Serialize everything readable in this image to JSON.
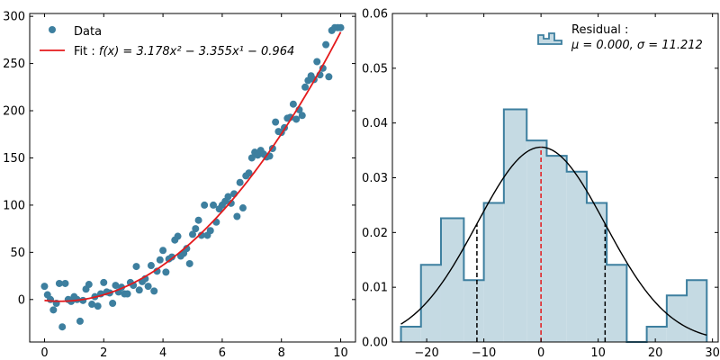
{
  "chart_data": [
    {
      "type": "scatter",
      "xlim": [
        -0.5,
        10.5
      ],
      "ylim": [
        -45,
        303
      ],
      "x_ticks": [
        0,
        2,
        4,
        6,
        8,
        10
      ],
      "y_ticks": [
        0,
        50,
        100,
        150,
        200,
        250,
        300
      ],
      "grid": false,
      "legend_position": "top-left",
      "colors": {
        "data": "#3d7f9f",
        "fit": "#e41a1c"
      },
      "series": [
        {
          "name": "Data",
          "x": [
            0.0,
            0.1,
            0.2,
            0.3,
            0.4,
            0.5,
            0.6,
            0.7,
            0.8,
            0.9,
            1.0,
            1.1,
            1.2,
            1.3,
            1.4,
            1.5,
            1.6,
            1.7,
            1.8,
            1.9,
            2.0,
            2.1,
            2.2,
            2.3,
            2.4,
            2.5,
            2.6,
            2.7,
            2.8,
            2.9,
            3.0,
            3.1,
            3.2,
            3.3,
            3.4,
            3.5,
            3.6,
            3.7,
            3.8,
            3.9,
            4.0,
            4.1,
            4.2,
            4.3,
            4.4,
            4.5,
            4.6,
            4.7,
            4.8,
            4.9,
            5.0,
            5.1,
            5.2,
            5.3,
            5.4,
            5.5,
            5.6,
            5.7,
            5.8,
            5.9,
            6.0,
            6.1,
            6.2,
            6.3,
            6.4,
            6.5,
            6.6,
            6.7,
            6.8,
            6.9,
            7.0,
            7.1,
            7.2,
            7.3,
            7.4,
            7.5,
            7.6,
            7.7,
            7.8,
            7.9,
            8.0,
            8.1,
            8.2,
            8.3,
            8.4,
            8.5,
            8.6,
            8.7,
            8.8,
            8.9,
            9.0,
            9.1,
            9.2,
            9.3,
            9.4,
            9.5,
            9.6,
            9.7,
            9.8,
            9.9,
            10.0
          ],
          "y": [
            14,
            5,
            0,
            -11,
            -4,
            17,
            -29,
            17,
            0,
            -2,
            3,
            0,
            -23,
            -1,
            11,
            16,
            -5,
            3,
            -7,
            6,
            18,
            8,
            7,
            -4,
            15,
            8,
            13,
            6,
            6,
            18,
            15,
            35,
            10,
            19,
            22,
            14,
            36,
            9,
            30,
            42,
            52,
            29,
            43,
            45,
            63,
            67,
            46,
            49,
            54,
            38,
            69,
            75,
            84,
            68,
            100,
            68,
            73,
            100,
            82,
            96,
            100,
            104,
            109,
            102,
            112,
            88,
            124,
            97,
            131,
            134,
            150,
            156,
            153,
            158,
            154,
            151,
            152,
            160,
            188,
            178,
            177,
            182,
            192,
            193,
            207,
            191,
            201,
            195,
            225,
            232,
            237,
            233,
            252,
            238,
            245,
            270,
            236,
            285,
            288,
            288,
            288
          ]
        },
        {
          "name": "Fit : f(x) = 3.178x² − 3.355x¹ − 0.964",
          "type": "line",
          "coefficients": [
            3.178,
            -3.355,
            -0.964
          ],
          "x_range": [
            0,
            10
          ]
        }
      ],
      "legend": {
        "data_label": "Data",
        "fit_prefix": "Fit : ",
        "fit_formula": "f(x) = 3.178x² − 3.355x¹ − 0.964"
      }
    },
    {
      "type": "bar",
      "xlim": [
        -26,
        31
      ],
      "ylim": [
        0,
        0.06
      ],
      "x_ticks": [
        -20,
        -10,
        0,
        10,
        20,
        30
      ],
      "y_ticks": [
        0.0,
        0.01,
        0.02,
        0.03,
        0.04,
        0.05,
        0.06
      ],
      "y_tick_labels": [
        "0.00",
        "0.01",
        "0.02",
        "0.03",
        "0.04",
        "0.05",
        "0.06"
      ],
      "grid": false,
      "legend_position": "top-right",
      "colors": {
        "hist_fill": "#c5dae3",
        "hist_edge": "#3d7f9f",
        "curve": "#000000",
        "mean_line": "#e41a1c",
        "sigma_line": "#000000"
      },
      "bins": [
        {
          "x0": -24.5,
          "x1": -21.0,
          "density": 0.0028
        },
        {
          "x0": -21.0,
          "x1": -17.5,
          "density": 0.0141
        },
        {
          "x0": -17.5,
          "x1": -13.5,
          "density": 0.0226
        },
        {
          "x0": -13.5,
          "x1": -10.0,
          "density": 0.0113
        },
        {
          "x0": -10.0,
          "x1": -6.5,
          "density": 0.0254
        },
        {
          "x0": -6.5,
          "x1": -2.5,
          "density": 0.0425
        },
        {
          "x0": -2.5,
          "x1": 1.0,
          "density": 0.0368
        },
        {
          "x0": 1.0,
          "x1": 4.5,
          "density": 0.034
        },
        {
          "x0": 4.5,
          "x1": 8.0,
          "density": 0.0311
        },
        {
          "x0": 8.0,
          "x1": 11.5,
          "density": 0.0254
        },
        {
          "x0": 11.5,
          "x1": 15.0,
          "density": 0.0141
        },
        {
          "x0": 15.0,
          "x1": 18.5,
          "density": 0.0
        },
        {
          "x0": 18.5,
          "x1": 22.0,
          "density": 0.0028
        },
        {
          "x0": 22.0,
          "x1": 25.5,
          "density": 0.0085
        },
        {
          "x0": 25.5,
          "x1": 29.0,
          "density": 0.0113
        }
      ],
      "mean": 0.0,
      "sigma": 11.212,
      "normal_curve": {
        "x_range": [
          -24.5,
          29.0
        ]
      },
      "legend": {
        "line1": "Residual :",
        "line2": "μ = 0.000, σ = 11.212"
      }
    }
  ]
}
